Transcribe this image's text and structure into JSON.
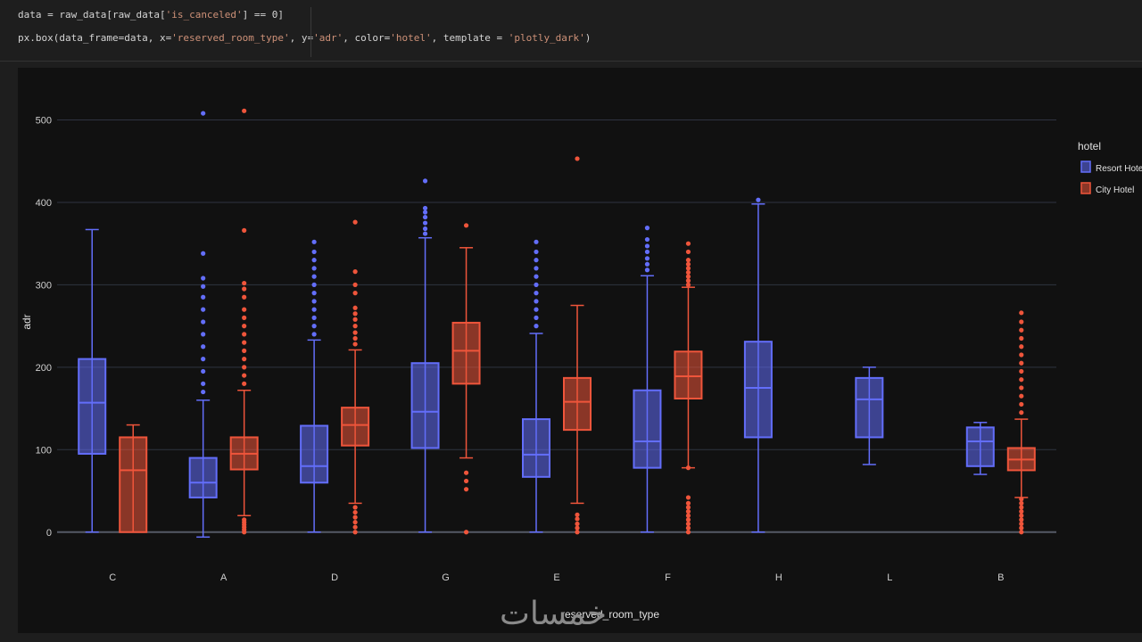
{
  "code": {
    "line1_prefix": "data = raw_data[raw_data[",
    "line1_str": "'is_canceled'",
    "line1_suffix": "] == 0]",
    "line2_a": "px.box(data_frame=data, x=",
    "line2_s1": "'reserved_room_type'",
    "line2_b": ", y=",
    "line2_s2": "'adr'",
    "line2_c": ", color=",
    "line2_s3": "'hotel'",
    "line2_d": ", template = ",
    "line2_s4": "'plotly_dark'",
    "line2_e": ")"
  },
  "watermark": "خمسات",
  "chart_data": {
    "type": "box",
    "xlabel": "reserved_room_type",
    "ylabel": "adr",
    "ylim": [
      -10,
      520
    ],
    "yticks": [
      0,
      100,
      200,
      300,
      400,
      500
    ],
    "grid": true,
    "legend": {
      "title": "hotel",
      "placement": "top-right"
    },
    "categories": [
      "C",
      "A",
      "D",
      "G",
      "E",
      "F",
      "H",
      "L",
      "B"
    ],
    "series": [
      {
        "name": "Resort Hotel",
        "color": "#636efa",
        "boxes": [
          {
            "category": "C",
            "min": 0,
            "q1": 95,
            "median": 157,
            "q3": 210,
            "max": 367,
            "outliers": []
          },
          {
            "category": "A",
            "min": -6,
            "q1": 42,
            "median": 60,
            "q3": 90,
            "max": 160,
            "outliers": [
              170,
              180,
              195,
              210,
              225,
              240,
              255,
              270,
              285,
              298,
              308,
              338,
              508
            ]
          },
          {
            "category": "D",
            "min": 0,
            "q1": 60,
            "median": 80,
            "q3": 129,
            "max": 233,
            "outliers": [
              240,
              250,
              260,
              270,
              280,
              290,
              300,
              310,
              320,
              330,
              340,
              352
            ]
          },
          {
            "category": "G",
            "min": 0,
            "q1": 102,
            "median": 146,
            "q3": 205,
            "max": 357,
            "outliers": [
              362,
              368,
              375,
              382,
              388,
              393,
              426
            ]
          },
          {
            "category": "E",
            "min": 0,
            "q1": 67,
            "median": 94,
            "q3": 137,
            "max": 241,
            "outliers": [
              250,
              260,
              270,
              280,
              290,
              300,
              310,
              320,
              330,
              340,
              352
            ]
          },
          {
            "category": "F",
            "min": 0,
            "q1": 78,
            "median": 110,
            "q3": 172,
            "max": 311,
            "outliers": [
              318,
              325,
              332,
              340,
              347,
              355,
              369
            ]
          },
          {
            "category": "H",
            "min": 0,
            "q1": 115,
            "median": 175,
            "q3": 231,
            "max": 398,
            "outliers": [
              403
            ]
          },
          {
            "category": "L",
            "min": 82,
            "q1": 115,
            "median": 161,
            "q3": 187,
            "max": 200,
            "outliers": []
          },
          {
            "category": "B",
            "min": 70,
            "q1": 80,
            "median": 110,
            "q3": 127,
            "max": 133,
            "outliers": []
          }
        ]
      },
      {
        "name": "City Hotel",
        "color": "#ef553b",
        "boxes": [
          {
            "category": "C",
            "min": 0,
            "q1": 0,
            "median": 75,
            "q3": 115,
            "max": 130,
            "outliers": []
          },
          {
            "category": "A",
            "min": 20,
            "q1": 76,
            "median": 95,
            "q3": 115,
            "max": 172,
            "outliers": [
              0,
              3,
              6,
              9,
              12,
              15,
              180,
              190,
              200,
              210,
              220,
              230,
              240,
              250,
              260,
              270,
              285,
              295,
              302,
              366,
              511
            ]
          },
          {
            "category": "D",
            "min": 35,
            "q1": 105,
            "median": 130,
            "q3": 151,
            "max": 221,
            "outliers": [
              0,
              6,
              12,
              18,
              24,
              30,
              228,
              235,
              242,
              250,
              258,
              265,
              272,
              290,
              300,
              316,
              376
            ]
          },
          {
            "category": "G",
            "min": 90,
            "q1": 180,
            "median": 220,
            "q3": 254,
            "max": 345,
            "outliers": [
              0,
              52,
              62,
              72,
              372
            ]
          },
          {
            "category": "E",
            "min": 35,
            "q1": 124,
            "median": 158,
            "q3": 187,
            "max": 275,
            "outliers": [
              0,
              5,
              10,
              16,
              21,
              453
            ]
          },
          {
            "category": "F",
            "min": 78,
            "q1": 162,
            "median": 189,
            "q3": 219,
            "max": 297,
            "outliers": [
              0,
              5,
              10,
              15,
              20,
              25,
              30,
              35,
              42,
              78,
              300,
              305,
              310,
              315,
              320,
              325,
              330,
              340,
              350
            ]
          },
          {
            "category": "B",
            "min": 42,
            "q1": 75,
            "median": 88,
            "q3": 102,
            "max": 137,
            "outliers": [
              0,
              5,
              10,
              15,
              20,
              25,
              30,
              35,
              40,
              145,
              155,
              165,
              175,
              185,
              195,
              205,
              215,
              225,
              235,
              245,
              255,
              266
            ]
          }
        ]
      }
    ]
  }
}
